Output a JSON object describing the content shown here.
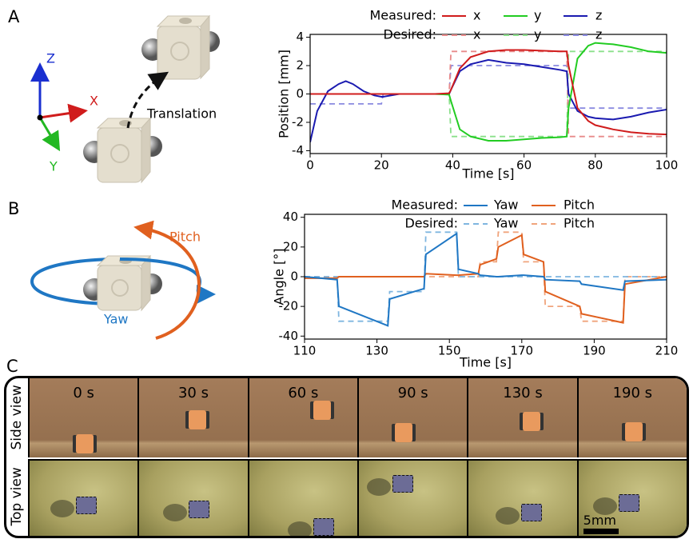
{
  "panel_labels": [
    "A",
    "B",
    "C"
  ],
  "diagram_a": {
    "axes": [
      "Z",
      "X",
      "Y"
    ],
    "label": "Translation"
  },
  "diagram_b": {
    "labels": [
      "Pitch",
      "Yaw"
    ]
  },
  "chart_data": [
    {
      "type": "line",
      "xlabel": "Time [s]",
      "ylabel": "Position [mm]",
      "legend_titles": [
        "Measured:",
        "Desired:"
      ],
      "x": [
        0,
        2,
        5,
        8,
        10,
        12,
        15,
        18,
        20,
        20.5,
        25,
        30,
        35,
        39,
        39.5,
        42,
        45,
        50,
        55,
        60,
        65,
        70,
        72,
        72.5,
        75,
        78,
        80,
        85,
        90,
        95,
        100
      ],
      "xlim": [
        0,
        100
      ],
      "xticks": [
        0,
        20,
        40,
        60,
        80,
        100
      ],
      "ylim": [
        -4.2,
        4.2
      ],
      "yticks": [
        -4,
        -2,
        0,
        2,
        4
      ],
      "series": [
        {
          "name": "x",
          "color": "#d01c1c",
          "dashed": false,
          "values": [
            0,
            0,
            0,
            0,
            0,
            0,
            0,
            0,
            0,
            0,
            0,
            0,
            0,
            0.05,
            0.3,
            1.8,
            2.6,
            3.0,
            3.1,
            3.1,
            3.05,
            3.0,
            3.0,
            2.0,
            -1.0,
            -1.9,
            -2.2,
            -2.5,
            -2.7,
            -2.8,
            -2.85
          ]
        },
        {
          "name": "y",
          "color": "#22cc22",
          "dashed": false,
          "values": [
            0,
            0,
            0,
            0,
            0,
            0,
            0,
            0,
            0,
            0,
            0,
            0,
            0,
            -0.05,
            -0.5,
            -2.5,
            -3.0,
            -3.3,
            -3.3,
            -3.2,
            -3.1,
            -3.05,
            -3.0,
            -1.0,
            2.5,
            3.4,
            3.6,
            3.5,
            3.3,
            3.0,
            2.9
          ]
        },
        {
          "name": "z",
          "color": "#1a1ab0",
          "dashed": false,
          "values": [
            -3.4,
            -1.2,
            0.2,
            0.7,
            0.9,
            0.7,
            0.2,
            -0.1,
            -0.2,
            -0.2,
            0,
            0,
            0,
            0,
            0.3,
            1.6,
            2.1,
            2.4,
            2.2,
            2.1,
            1.9,
            1.7,
            1.6,
            0,
            -1.2,
            -1.6,
            -1.7,
            -1.8,
            -1.6,
            -1.3,
            -1.1
          ]
        },
        {
          "name": "x",
          "color": "#e88a8a",
          "dashed": true,
          "values": [
            0,
            0,
            0,
            0,
            0,
            0,
            0,
            0,
            0,
            0,
            0,
            0,
            0,
            0,
            3,
            3,
            3,
            3,
            3,
            3,
            3,
            3,
            3,
            -3,
            -3,
            -3,
            -3,
            -3,
            -3,
            -3,
            -3
          ]
        },
        {
          "name": "y",
          "color": "#8ae08a",
          "dashed": true,
          "values": [
            0,
            0,
            0,
            0,
            0,
            0,
            0,
            0,
            0,
            0,
            0,
            0,
            0,
            0,
            -3,
            -3,
            -3,
            -3,
            -3,
            -3,
            -3,
            -3,
            -3,
            3,
            3,
            3,
            3,
            3,
            3,
            3,
            3
          ]
        },
        {
          "name": "z",
          "color": "#8a8ae0",
          "dashed": true,
          "values": [
            -0.7,
            -0.7,
            -0.7,
            -0.7,
            -0.7,
            -0.7,
            -0.7,
            -0.7,
            -0.7,
            0,
            0,
            0,
            0,
            0,
            2,
            2,
            2,
            2,
            2,
            2,
            2,
            2,
            2,
            -1,
            -1,
            -1,
            -1,
            -1,
            -1,
            -1,
            -1
          ]
        }
      ]
    },
    {
      "type": "line",
      "xlabel": "Time [s]",
      "ylabel": "Angle [°]",
      "legend_titles": [
        "Measured:",
        "Desired:"
      ],
      "x": [
        110,
        119,
        119.5,
        133,
        133.5,
        143,
        143.5,
        152,
        152.5,
        158,
        158.5,
        163,
        163.5,
        170,
        170.5,
        176,
        176.5,
        186,
        186.5,
        198,
        198.5,
        210
      ],
      "xlim": [
        110,
        210
      ],
      "xticks": [
        110,
        130,
        150,
        170,
        190,
        210
      ],
      "ylim": [
        -42,
        42
      ],
      "yticks": [
        -40,
        -20,
        0,
        20,
        40
      ],
      "series": [
        {
          "name": "Yaw",
          "color": "#1f77c4",
          "dashed": false,
          "values": [
            0,
            -2,
            -20,
            -33,
            -15,
            -8,
            15,
            29,
            5,
            2,
            1,
            0,
            0,
            1,
            1,
            0,
            -2,
            -3,
            -5,
            -9,
            -3,
            -2
          ]
        },
        {
          "name": "Pitch",
          "color": "#e0601f",
          "dashed": false,
          "values": [
            -1,
            -1,
            0,
            0,
            0,
            0,
            2,
            1,
            1,
            2,
            8,
            12,
            20,
            28,
            15,
            10,
            -10,
            -20,
            -25,
            -31,
            -5,
            0
          ]
        },
        {
          "name": "Yaw",
          "color": "#7fb6e0",
          "dashed": true,
          "values": [
            0,
            0,
            -30,
            -30,
            -10,
            -10,
            30,
            30,
            0,
            0,
            0,
            0,
            0,
            0,
            0,
            0,
            0,
            0,
            0,
            0,
            0,
            0
          ]
        },
        {
          "name": "Pitch",
          "color": "#f0a47c",
          "dashed": true,
          "values": [
            0,
            0,
            0,
            0,
            0,
            0,
            0,
            0,
            0,
            0,
            10,
            10,
            30,
            30,
            10,
            10,
            -20,
            -20,
            -30,
            -30,
            0,
            0
          ]
        }
      ]
    }
  ],
  "photo_grid": {
    "row_labels": [
      "Side view",
      "Top view"
    ],
    "times": [
      "0 s",
      "30 s",
      "60 s",
      "90 s",
      "130 s",
      "190 s"
    ],
    "scale_bar": "5mm"
  }
}
